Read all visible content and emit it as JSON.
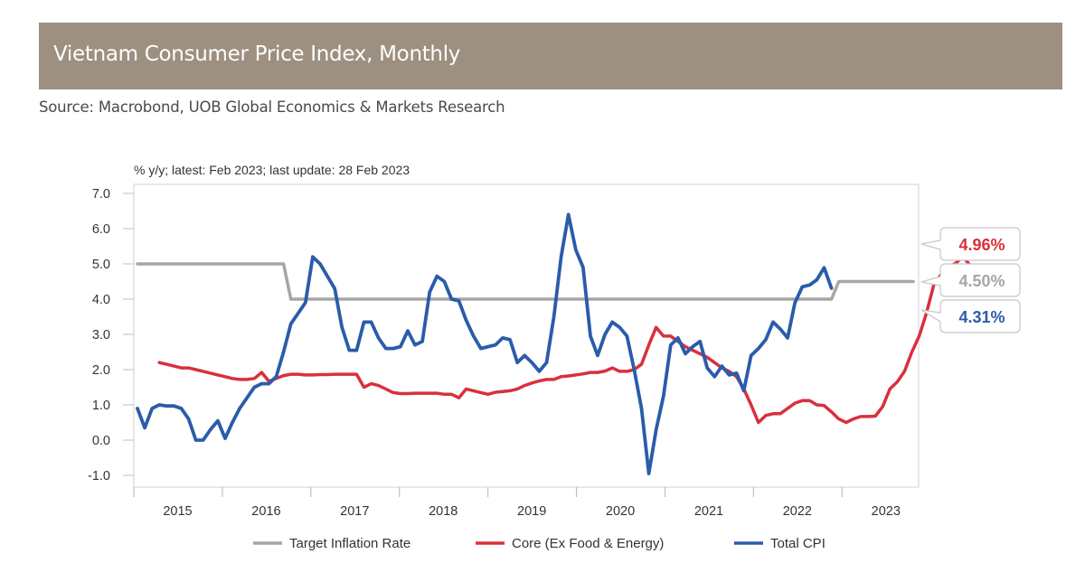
{
  "header": {
    "title": "Vietnam Consumer Price Index, Monthly",
    "source": "Source: Macrobond, UOB Global Economics & Markets Research"
  },
  "colors": {
    "banner": "#9d9080",
    "target": "#a6a6a6",
    "core": "#d9303b",
    "total": "#2a5caa"
  },
  "chart_data": {
    "type": "line",
    "title": "Vietnam Consumer Price Index, Monthly",
    "note": "% y/y; latest: Feb 2023; last update: 28 Feb 2023",
    "xlabel": "",
    "ylabel": "% y/y",
    "ylim": [
      -1.0,
      7.0
    ],
    "yticks": [
      "7.0",
      "6.0",
      "5.0",
      "4.0",
      "3.0",
      "2.0",
      "1.0",
      "0.0",
      "-1.0"
    ],
    "xticks": [
      "2015",
      "2016",
      "2017",
      "2018",
      "2019",
      "2020",
      "2021",
      "2022",
      "2023"
    ],
    "xrange": [
      "2015-01",
      "2023-12"
    ],
    "grid": false,
    "legend_position": "bottom",
    "legend": [
      "Target Inflation Rate",
      "Core (Ex Food & Energy)",
      "Total CPI"
    ],
    "series": [
      {
        "name": "Target Inflation Rate",
        "key": "target",
        "start": "2015-01",
        "values": [
          5.0,
          5.0,
          5.0,
          5.0,
          5.0,
          5.0,
          5.0,
          5.0,
          5.0,
          5.0,
          5.0,
          5.0,
          5.0,
          5.0,
          5.0,
          5.0,
          5.0,
          5.0,
          5.0,
          5.0,
          5.0,
          4.0,
          4.0,
          4.0,
          4.0,
          4.0,
          4.0,
          4.0,
          4.0,
          4.0,
          4.0,
          4.0,
          4.0,
          4.0,
          4.0,
          4.0,
          4.0,
          4.0,
          4.0,
          4.0,
          4.0,
          4.0,
          4.0,
          4.0,
          4.0,
          4.0,
          4.0,
          4.0,
          4.0,
          4.0,
          4.0,
          4.0,
          4.0,
          4.0,
          4.0,
          4.0,
          4.0,
          4.0,
          4.0,
          4.0,
          4.0,
          4.0,
          4.0,
          4.0,
          4.0,
          4.0,
          4.0,
          4.0,
          4.0,
          4.0,
          4.0,
          4.0,
          4.0,
          4.0,
          4.0,
          4.0,
          4.0,
          4.0,
          4.0,
          4.0,
          4.0,
          4.0,
          4.0,
          4.0,
          4.0,
          4.0,
          4.0,
          4.0,
          4.0,
          4.0,
          4.0,
          4.0,
          4.0,
          4.0,
          4.0,
          4.0,
          4.5,
          4.5,
          4.5,
          4.5,
          4.5,
          4.5,
          4.5,
          4.5,
          4.5,
          4.5,
          4.5,
          4.5
        ]
      },
      {
        "name": "Core (Ex Food & Energy)",
        "key": "core",
        "start": "2015-04",
        "values": [
          2.2,
          2.15,
          2.1,
          2.05,
          2.05,
          2.0,
          1.95,
          1.9,
          1.85,
          1.8,
          1.75,
          1.72,
          1.72,
          1.75,
          1.92,
          1.67,
          1.75,
          1.83,
          1.87,
          1.87,
          1.85,
          1.85,
          1.86,
          1.86,
          1.87,
          1.87,
          1.87,
          1.87,
          1.5,
          1.6,
          1.55,
          1.45,
          1.35,
          1.32,
          1.32,
          1.33,
          1.33,
          1.33,
          1.33,
          1.3,
          1.3,
          1.2,
          1.45,
          1.4,
          1.35,
          1.3,
          1.36,
          1.38,
          1.4,
          1.45,
          1.55,
          1.62,
          1.68,
          1.72,
          1.72,
          1.8,
          1.82,
          1.85,
          1.88,
          1.92,
          1.92,
          1.96,
          2.05,
          1.95,
          1.95,
          2.0,
          2.15,
          2.7,
          3.2,
          2.95,
          2.95,
          2.8,
          2.65,
          2.55,
          2.45,
          2.35,
          2.2,
          2.05,
          1.95,
          1.8,
          1.45,
          1.0,
          0.5,
          0.7,
          0.75,
          0.75,
          0.9,
          1.05,
          1.12,
          1.12,
          1.0,
          0.98,
          0.8,
          0.6,
          0.5,
          0.6,
          0.67,
          0.67,
          0.68,
          0.95,
          1.45,
          1.65,
          1.95,
          2.5,
          2.95,
          3.6,
          4.4,
          4.7,
          4.9,
          5.02,
          5.2,
          4.96
        ]
      },
      {
        "name": "Total CPI",
        "key": "total",
        "start": "2015-01",
        "values": [
          0.9,
          0.35,
          0.9,
          1.0,
          0.97,
          0.97,
          0.9,
          0.6,
          0.0,
          0.0,
          0.3,
          0.55,
          0.05,
          0.5,
          0.9,
          1.2,
          1.5,
          1.6,
          1.6,
          1.8,
          2.5,
          3.3,
          3.6,
          3.9,
          5.2,
          5.0,
          4.65,
          4.3,
          3.2,
          2.55,
          2.55,
          3.35,
          3.35,
          2.9,
          2.6,
          2.6,
          2.65,
          3.1,
          2.7,
          2.8,
          4.2,
          4.65,
          4.5,
          4.0,
          3.95,
          3.4,
          2.95,
          2.6,
          2.65,
          2.7,
          2.9,
          2.85,
          2.2,
          2.4,
          2.2,
          1.95,
          2.2,
          3.5,
          5.2,
          6.4,
          5.4,
          4.9,
          2.95,
          2.4,
          3.0,
          3.35,
          3.2,
          2.95,
          2.0,
          0.9,
          -0.95,
          0.3,
          1.25,
          2.7,
          2.9,
          2.45,
          2.65,
          2.8,
          2.05,
          1.8,
          2.1,
          1.85,
          1.9,
          1.4,
          2.4,
          2.6,
          2.85,
          3.35,
          3.15,
          2.9,
          3.9,
          4.35,
          4.4,
          4.55,
          4.89,
          4.31
        ]
      }
    ],
    "latest": {
      "core": "4.96%",
      "target": "4.50%",
      "total": "4.31%"
    }
  }
}
